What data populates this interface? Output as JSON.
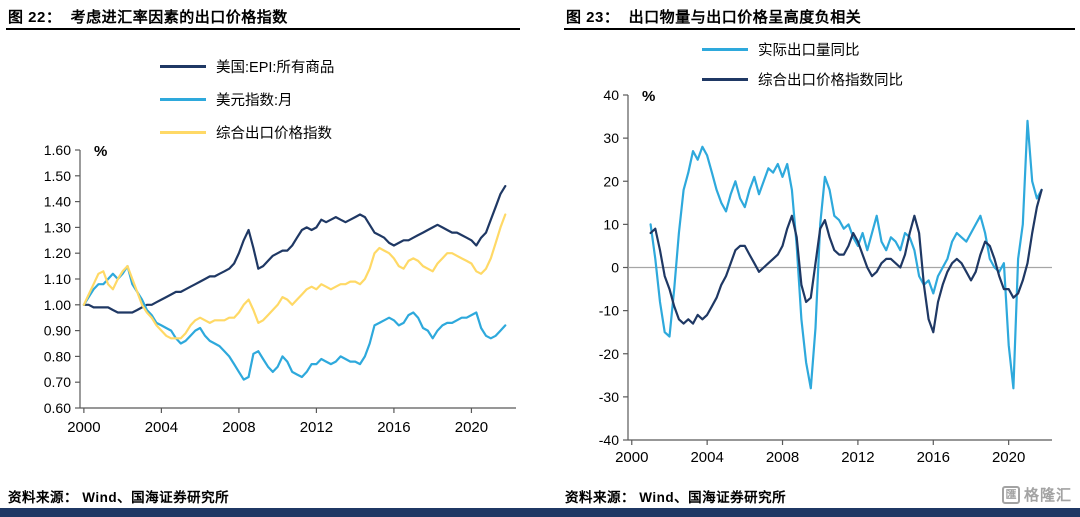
{
  "page": {
    "background": "#ffffff",
    "footer_bar_color": "#1F3864",
    "axis_color": "#595959",
    "zero_line_color": "#a6a6a6"
  },
  "sources": [
    "资料来源： Wind、国海证券研究所",
    "资料来源： Wind、国海证券研究所"
  ],
  "watermark": {
    "icon_char": "匯",
    "text": "格隆汇",
    "color": "#a3a3a3"
  },
  "chart_data": [
    {
      "type": "line",
      "title": "图 22：  考虑进汇率因素的出口价格指数",
      "ylabel": "%",
      "xlabel": "",
      "grid": false,
      "legend_position": "top-left-vertical",
      "x_start": 2000.0,
      "x_step": 0.25,
      "xlim": [
        1999.8,
        2022.3
      ],
      "ylim": [
        0.6,
        1.6
      ],
      "zero_line": false,
      "y_ticks": [
        "0.60",
        "0.70",
        "0.80",
        "0.90",
        "1.00",
        "1.10",
        "1.20",
        "1.30",
        "1.40",
        "1.50",
        "1.60"
      ],
      "x_ticks": [
        2000,
        2004,
        2008,
        2012,
        2016,
        2020
      ],
      "series": [
        {
          "name": "美国:EPI:所有商品",
          "color": "#1F3864",
          "values": [
            1.0,
            1.0,
            0.99,
            0.99,
            0.99,
            0.99,
            0.98,
            0.97,
            0.97,
            0.97,
            0.97,
            0.98,
            0.99,
            1.0,
            1.0,
            1.01,
            1.02,
            1.03,
            1.04,
            1.05,
            1.05,
            1.06,
            1.07,
            1.08,
            1.09,
            1.1,
            1.11,
            1.11,
            1.12,
            1.13,
            1.14,
            1.16,
            1.2,
            1.25,
            1.29,
            1.22,
            1.14,
            1.15,
            1.17,
            1.19,
            1.2,
            1.21,
            1.21,
            1.23,
            1.26,
            1.29,
            1.3,
            1.29,
            1.3,
            1.33,
            1.32,
            1.33,
            1.34,
            1.33,
            1.32,
            1.33,
            1.34,
            1.35,
            1.34,
            1.31,
            1.28,
            1.27,
            1.26,
            1.24,
            1.23,
            1.24,
            1.25,
            1.25,
            1.26,
            1.27,
            1.28,
            1.29,
            1.3,
            1.31,
            1.3,
            1.29,
            1.28,
            1.28,
            1.27,
            1.26,
            1.25,
            1.23,
            1.26,
            1.28,
            1.33,
            1.38,
            1.43,
            1.46
          ]
        },
        {
          "name": "美元指数:月",
          "color": "#2EA9DC",
          "values": [
            1.0,
            1.03,
            1.06,
            1.08,
            1.08,
            1.1,
            1.12,
            1.1,
            1.12,
            1.15,
            1.08,
            1.05,
            1.02,
            0.98,
            0.96,
            0.93,
            0.92,
            0.91,
            0.9,
            0.87,
            0.85,
            0.86,
            0.88,
            0.9,
            0.91,
            0.88,
            0.86,
            0.85,
            0.84,
            0.82,
            0.8,
            0.77,
            0.74,
            0.71,
            0.72,
            0.81,
            0.82,
            0.79,
            0.76,
            0.74,
            0.76,
            0.8,
            0.78,
            0.74,
            0.73,
            0.72,
            0.74,
            0.77,
            0.77,
            0.79,
            0.78,
            0.77,
            0.78,
            0.8,
            0.79,
            0.78,
            0.78,
            0.77,
            0.8,
            0.85,
            0.92,
            0.93,
            0.94,
            0.95,
            0.94,
            0.92,
            0.93,
            0.96,
            0.97,
            0.95,
            0.91,
            0.9,
            0.87,
            0.9,
            0.92,
            0.93,
            0.93,
            0.94,
            0.95,
            0.95,
            0.96,
            0.97,
            0.91,
            0.88,
            0.87,
            0.88,
            0.9,
            0.92
          ]
        },
        {
          "name": "综合出口价格指数",
          "color": "#FFD966",
          "values": [
            1.0,
            1.04,
            1.08,
            1.12,
            1.13,
            1.08,
            1.06,
            1.1,
            1.13,
            1.15,
            1.1,
            1.05,
            1.0,
            0.97,
            0.95,
            0.92,
            0.9,
            0.88,
            0.87,
            0.87,
            0.87,
            0.89,
            0.92,
            0.94,
            0.95,
            0.94,
            0.93,
            0.94,
            0.94,
            0.94,
            0.95,
            0.95,
            0.97,
            1.0,
            1.02,
            0.98,
            0.93,
            0.94,
            0.96,
            0.98,
            1.0,
            1.03,
            1.02,
            1.0,
            1.02,
            1.04,
            1.06,
            1.07,
            1.06,
            1.08,
            1.07,
            1.06,
            1.07,
            1.08,
            1.08,
            1.09,
            1.09,
            1.08,
            1.1,
            1.14,
            1.2,
            1.22,
            1.21,
            1.2,
            1.18,
            1.15,
            1.14,
            1.17,
            1.18,
            1.17,
            1.15,
            1.14,
            1.13,
            1.16,
            1.18,
            1.2,
            1.2,
            1.19,
            1.18,
            1.17,
            1.16,
            1.13,
            1.12,
            1.14,
            1.18,
            1.24,
            1.3,
            1.35
          ]
        }
      ]
    },
    {
      "type": "line",
      "title": "图 23：  出口物量与出口价格呈高度负相关",
      "ylabel": "%",
      "xlabel": "",
      "grid": false,
      "legend_position": "top-center-vertical",
      "x_start": 2001.0,
      "x_step": 0.25,
      "xlim": [
        1999.8,
        2022.3
      ],
      "ylim": [
        -40,
        40
      ],
      "zero_line": true,
      "y_ticks": [
        "-40",
        "-30",
        "-20",
        "-10",
        "0",
        "10",
        "20",
        "30",
        "40"
      ],
      "x_ticks": [
        2000,
        2004,
        2008,
        2012,
        2016,
        2020
      ],
      "series": [
        {
          "name": "实际出口量同比",
          "color": "#2EA9DC",
          "values": [
            10,
            2,
            -8,
            -15,
            -16,
            -5,
            8,
            18,
            22,
            27,
            25,
            28,
            26,
            22,
            18,
            15,
            13,
            17,
            20,
            16,
            14,
            18,
            21,
            17,
            20,
            23,
            22,
            24,
            21,
            24,
            18,
            5,
            -12,
            -22,
            -28,
            -14,
            10,
            21,
            18,
            12,
            11,
            9,
            10,
            7,
            5,
            8,
            4,
            8,
            12,
            6,
            4,
            7,
            6,
            4,
            8,
            7,
            4,
            -2,
            -4,
            -3,
            -6,
            -2,
            0,
            2,
            6,
            8,
            7,
            6,
            8,
            10,
            12,
            8,
            2,
            0,
            -1,
            1,
            -18,
            -28,
            2,
            10,
            34,
            20,
            16,
            18
          ]
        },
        {
          "name": "综合出口价格指数同比",
          "color": "#1F3864",
          "values": [
            8,
            9,
            4,
            -2,
            -5,
            -9,
            -12,
            -13,
            -12,
            -13,
            -11,
            -12,
            -11,
            -9,
            -7,
            -4,
            -2,
            1,
            4,
            5,
            5,
            3,
            1,
            -1,
            0,
            1,
            2,
            3,
            5,
            9,
            12,
            7,
            -4,
            -8,
            -7,
            1,
            9,
            11,
            7,
            4,
            3,
            3,
            5,
            8,
            6,
            3,
            0,
            -2,
            -1,
            1,
            2,
            2,
            1,
            0,
            3,
            8,
            12,
            8,
            -4,
            -12,
            -15,
            -8,
            -4,
            -1,
            1,
            2,
            1,
            -1,
            -3,
            -1,
            3,
            6,
            5,
            2,
            -2,
            -5,
            -5,
            -7,
            -6,
            -3,
            1,
            8,
            14,
            18
          ]
        }
      ]
    }
  ]
}
